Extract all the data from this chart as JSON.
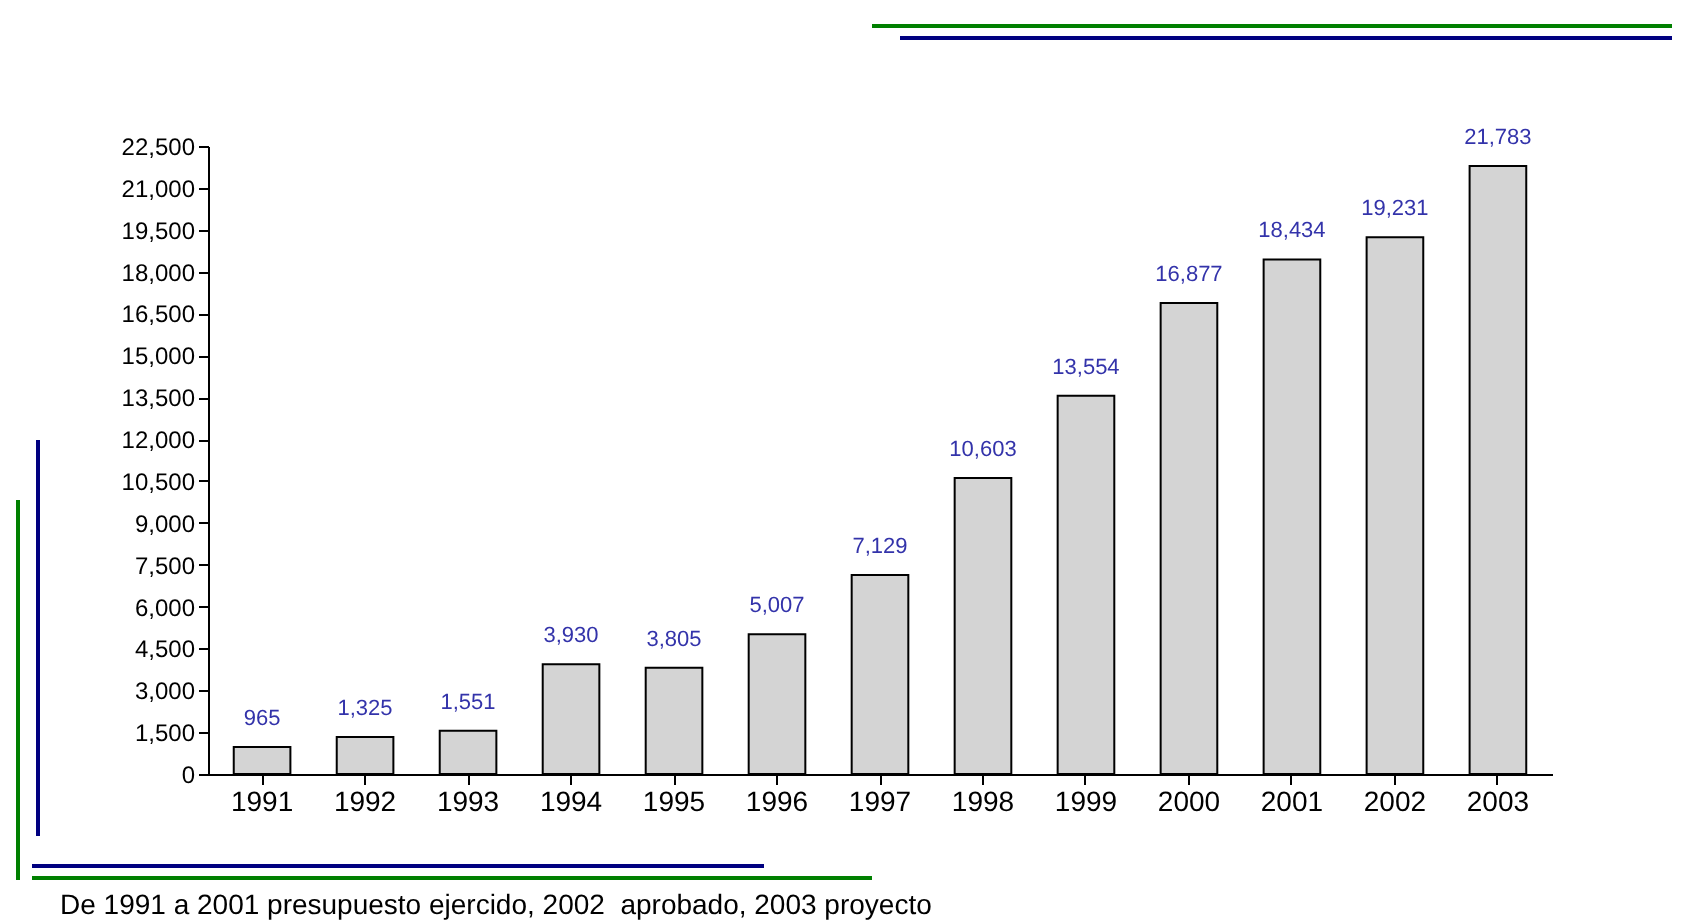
{
  "chart_data": {
    "type": "bar",
    "categories": [
      "1991",
      "1992",
      "1993",
      "1994",
      "1995",
      "1996",
      "1997",
      "1998",
      "1999",
      "2000",
      "2001",
      "2002",
      "2003"
    ],
    "values": [
      965,
      1325,
      1551,
      3930,
      3805,
      5007,
      7129,
      10603,
      13554,
      16877,
      18434,
      19231,
      21783
    ],
    "value_labels": [
      "965",
      "1,325",
      "1,551",
      "3,930",
      "3,805",
      "5,007",
      "7,129",
      "10,603",
      "13,554",
      "16,877",
      "18,434",
      "19,231",
      "21,783"
    ],
    "color": "#d4d4d4",
    "ylim": [
      0,
      22500
    ],
    "yticks": [
      0,
      {
        "value": 1500,
        "label": "1,500"
      },
      {
        "value": 3000,
        "label": "3,000"
      },
      {
        "value": 4500,
        "label": "4,500"
      },
      {
        "value": 6000,
        "label": "6,000"
      },
      {
        "value": 7500,
        "label": "7,500"
      },
      {
        "value": 9000,
        "label": "9,000"
      },
      {
        "value": 10500,
        "label": "10,500"
      },
      {
        "value": 12000,
        "label": "12,000"
      },
      {
        "value": 13500,
        "label": "13,500"
      },
      {
        "value": 15000,
        "label": "15,000"
      },
      {
        "value": 16500,
        "label": "16,500"
      },
      {
        "value": 18000,
        "label": "18,000"
      },
      {
        "value": 19500,
        "label": "19,500"
      },
      {
        "value": 21000,
        "label": "21,000"
      },
      {
        "value": 22500,
        "label": "22,500"
      }
    ],
    "annotations": [
      "De 1991 a 2001 presupuesto ejercido, 2002  aprobado, 2003 proyecto"
    ]
  }
}
